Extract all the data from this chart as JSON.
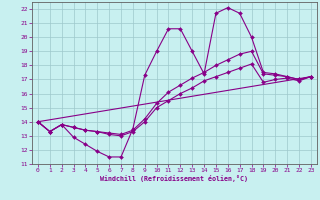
{
  "xlabel": "Windchill (Refroidissement éolien,°C)",
  "xlim": [
    -0.5,
    23.5
  ],
  "ylim": [
    11,
    22.5
  ],
  "xticks": [
    0,
    1,
    2,
    3,
    4,
    5,
    6,
    7,
    8,
    9,
    10,
    11,
    12,
    13,
    14,
    15,
    16,
    17,
    18,
    19,
    20,
    21,
    22,
    23
  ],
  "yticks": [
    11,
    12,
    13,
    14,
    15,
    16,
    17,
    18,
    19,
    20,
    21,
    22
  ],
  "background_color": "#c8f0f0",
  "grid_color": "#9ec8cc",
  "line_color": "#880088",
  "curve1_x": [
    0,
    1,
    2,
    3,
    4,
    5,
    6,
    7,
    8,
    9,
    10,
    11,
    12,
    13,
    14,
    15,
    16,
    17,
    18,
    19,
    20,
    21,
    22,
    23
  ],
  "curve1_y": [
    14.0,
    13.3,
    13.8,
    12.9,
    12.4,
    11.9,
    11.5,
    11.5,
    13.5,
    17.3,
    19.0,
    20.6,
    20.6,
    19.0,
    17.4,
    21.7,
    22.1,
    21.7,
    20.0,
    17.5,
    17.4,
    17.2,
    17.0,
    17.2
  ],
  "curve2_x": [
    0,
    1,
    2,
    3,
    4,
    5,
    6,
    7,
    8,
    9,
    10,
    11,
    12,
    13,
    14,
    15,
    16,
    17,
    18,
    19,
    20,
    21,
    22,
    23
  ],
  "curve2_y": [
    14.0,
    13.3,
    13.8,
    13.6,
    13.4,
    13.3,
    13.2,
    13.1,
    13.4,
    14.2,
    15.3,
    16.1,
    16.6,
    17.1,
    17.5,
    18.0,
    18.4,
    18.8,
    19.0,
    17.4,
    17.3,
    17.2,
    17.0,
    17.2
  ],
  "curve3_x": [
    0,
    1,
    2,
    3,
    4,
    5,
    6,
    7,
    8,
    9,
    10,
    11,
    12,
    13,
    14,
    15,
    16,
    17,
    18,
    19,
    20,
    21,
    22,
    23
  ],
  "curve3_y": [
    14.0,
    13.3,
    13.8,
    13.6,
    13.4,
    13.3,
    13.1,
    13.0,
    13.3,
    14.0,
    15.0,
    15.5,
    16.0,
    16.4,
    16.9,
    17.2,
    17.5,
    17.8,
    18.1,
    16.8,
    17.0,
    17.1,
    16.9,
    17.2
  ],
  "curve4_x": [
    0,
    23
  ],
  "curve4_y": [
    14.0,
    17.2
  ]
}
